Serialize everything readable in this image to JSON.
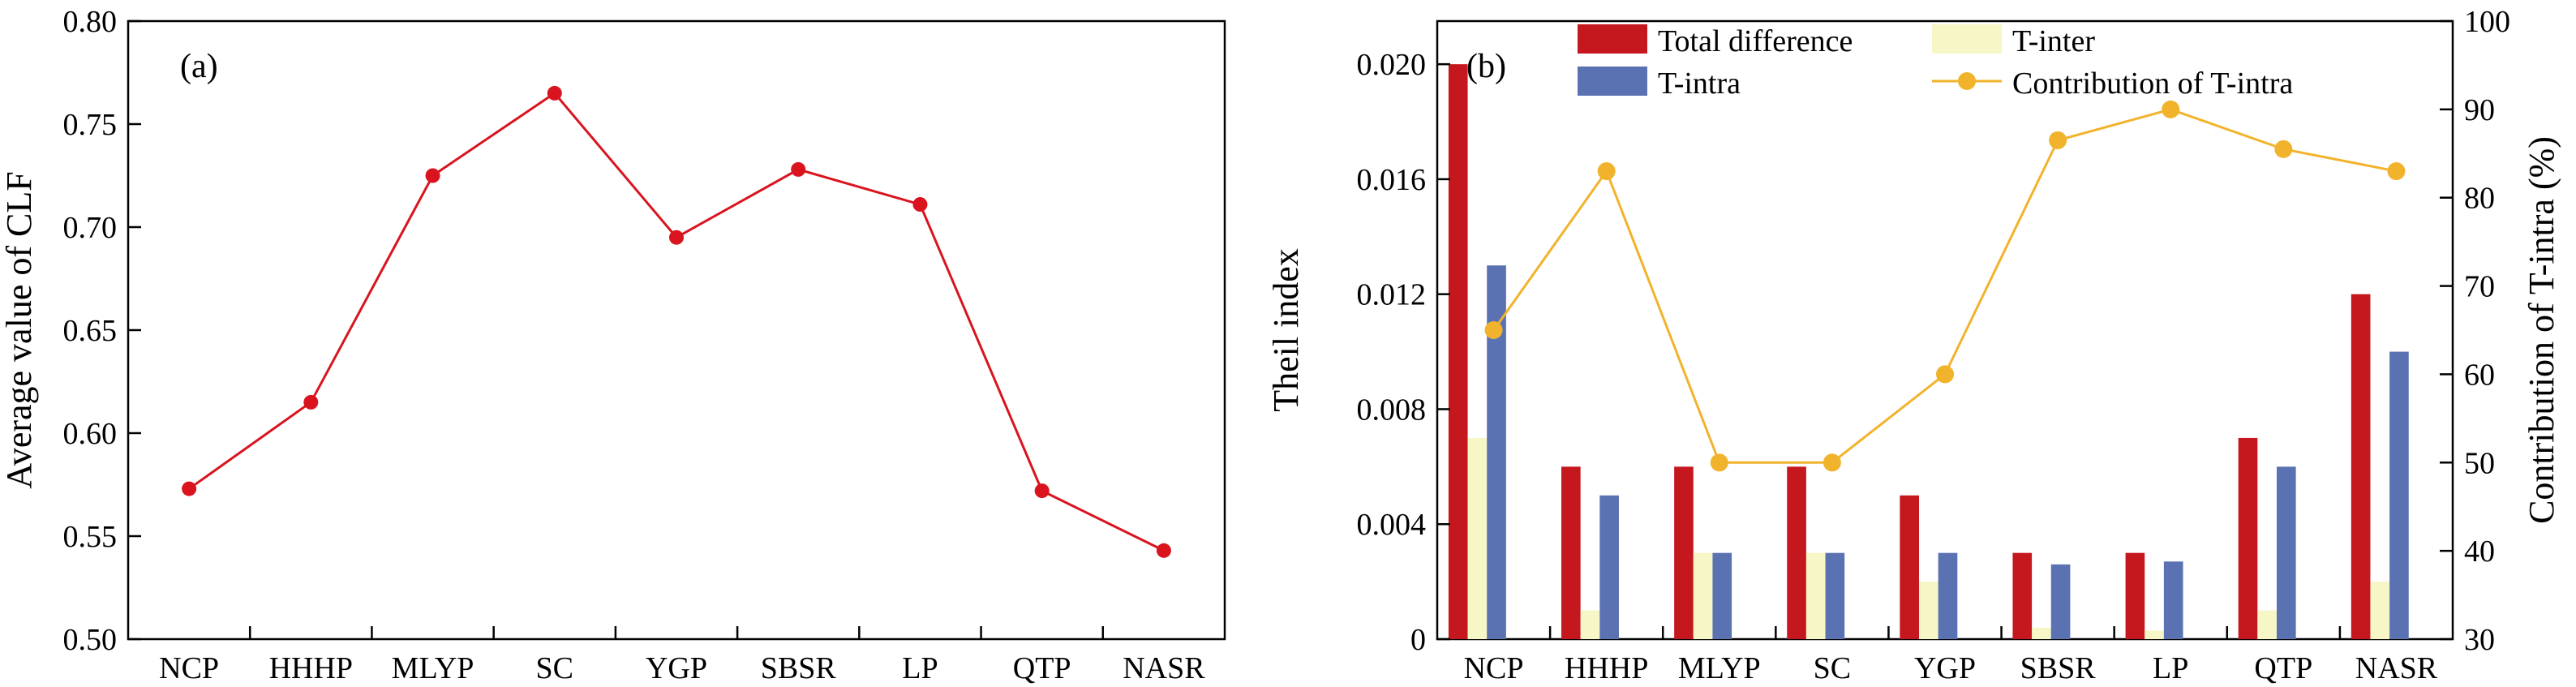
{
  "colors": {
    "line_a": "#d9141f",
    "total": "#c5181e",
    "t_inter": "#f6f6c6",
    "t_intra": "#5b72b2",
    "contribution": "#f2b32c"
  },
  "chart_data": [
    {
      "type": "line",
      "panel_label": "(a)",
      "ylabel": "Average value of CLF",
      "categories": [
        "NCP",
        "HHHP",
        "MLYP",
        "SC",
        "YGP",
        "SBSR",
        "LP",
        "QTP",
        "NASR"
      ],
      "series": [
        {
          "values": [
            0.573,
            0.615,
            0.725,
            0.765,
            0.695,
            0.728,
            0.711,
            0.572,
            0.543
          ]
        }
      ],
      "ylim": [
        0.5,
        0.8
      ],
      "yticks": [
        "0.50",
        "0.55",
        "0.60",
        "0.65",
        "0.70",
        "0.75",
        "0.80"
      ],
      "grid": false
    },
    {
      "type": "bar",
      "panel_label": "(b)",
      "ylabel": "Theil index",
      "y2label": "Contribution of T-intra (%)",
      "categories": [
        "NCP",
        "HHHP",
        "MLYP",
        "SC",
        "YGP",
        "SBSR",
        "LP",
        "QTP",
        "NASR"
      ],
      "series": [
        {
          "name": "Total difference",
          "values": [
            0.02,
            0.006,
            0.006,
            0.006,
            0.005,
            0.003,
            0.003,
            0.007,
            0.012
          ]
        },
        {
          "name": "T-inter",
          "values": [
            0.007,
            0.001,
            0.003,
            0.003,
            0.002,
            0.0004,
            0.0003,
            0.001,
            0.002
          ]
        },
        {
          "name": "T-intra",
          "values": [
            0.013,
            0.005,
            0.003,
            0.003,
            0.003,
            0.0026,
            0.0027,
            0.006,
            0.01
          ]
        }
      ],
      "line_series": {
        "name": "Contribution of T-intra",
        "axis": "right",
        "values": [
          65,
          83,
          50,
          50,
          60,
          86.5,
          90,
          85.5,
          83
        ]
      },
      "ylim": [
        0,
        0.0215
      ],
      "yticks": [
        "0",
        "0.004",
        "0.008",
        "0.012",
        "0.016",
        "0.020"
      ],
      "y2lim": [
        30,
        100
      ],
      "y2ticks": [
        "30",
        "40",
        "50",
        "60",
        "70",
        "80",
        "90",
        "100"
      ],
      "legend_position": "top",
      "grid": false
    }
  ]
}
